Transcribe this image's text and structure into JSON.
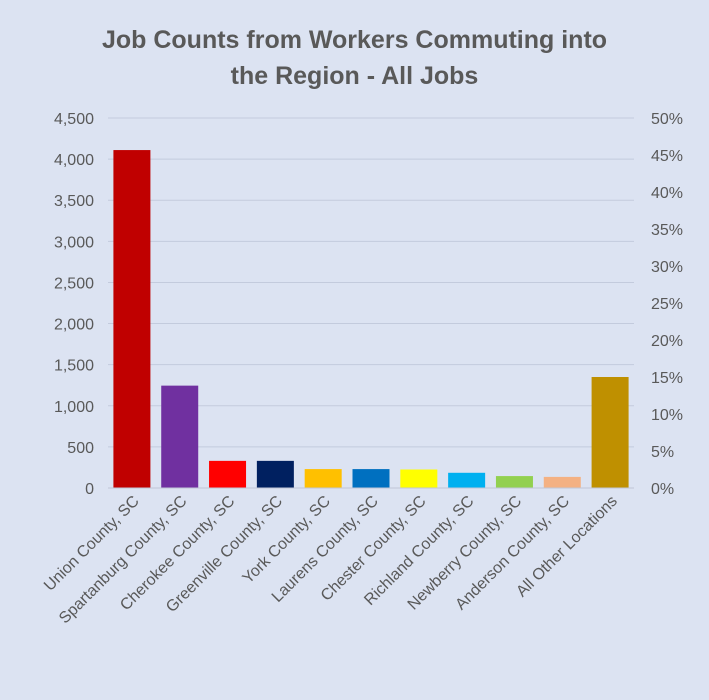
{
  "chart_data": {
    "type": "bar",
    "title_line1": "Job Counts from Workers Commuting into",
    "title_line2": "the Region - All Jobs",
    "categories": [
      "Union County, SC",
      "Spartanburg County, SC",
      "Cherokee County, SC",
      "Greenville County, SC",
      "York County, SC",
      "Laurens County, SC",
      "Chester County, SC",
      "Richland County, SC",
      "Newberry County, SC",
      "Anderson County, SC",
      "All Other Locations"
    ],
    "values": [
      4110,
      1245,
      330,
      330,
      230,
      230,
      225,
      185,
      145,
      135,
      1350
    ],
    "colors": [
      "#c00000",
      "#7030a0",
      "#ff0000",
      "#002060",
      "#ffc000",
      "#0070c0",
      "#ffff00",
      "#00b0f0",
      "#92d050",
      "#f4b183",
      "#bf9000"
    ],
    "ylim": [
      0,
      4500
    ],
    "y_ticks": [
      "0",
      "500",
      "1,000",
      "1,500",
      "2,000",
      "2,500",
      "3,000",
      "3,500",
      "4,000",
      "4,500"
    ],
    "y2lim": [
      0,
      50
    ],
    "y2_ticks": [
      "0%",
      "5%",
      "10%",
      "15%",
      "20%",
      "25%",
      "30%",
      "35%",
      "40%",
      "45%",
      "50%"
    ],
    "grid": true,
    "legend": "none"
  }
}
